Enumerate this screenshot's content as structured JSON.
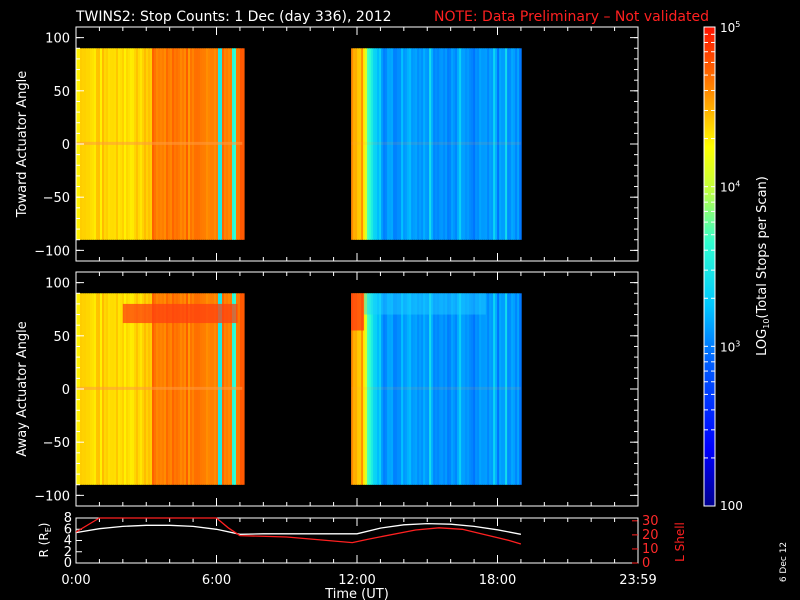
{
  "header": {
    "title": "TWINS2: Stop Counts:  1 Dec (day 336), 2012",
    "note": "NOTE: Data Preliminary – Not validated"
  },
  "footer": {
    "date_stamp": "6 Dec 12"
  },
  "colors": {
    "background": "#000000",
    "axes": "#ffffff",
    "note": "#ff2020",
    "r_line": "#ffffff",
    "lshell_line": "#ff2020"
  },
  "chart_data": [
    {
      "type": "heatmap",
      "ylabel": "Toward Actuator Angle",
      "x_unit": "hours UT",
      "xlim": [
        0,
        24
      ],
      "ylim": [
        -110,
        110
      ],
      "yticks": [
        "100",
        "50",
        "0",
        "−50",
        "−100"
      ],
      "y_extent": [
        -90,
        90
      ],
      "colorscale": "log",
      "data_segments": [
        {
          "start": 0.0,
          "end": 7.1,
          "level": "high (~10^4.6 stops/scan)"
        },
        {
          "start": 11.75,
          "end": 19.0,
          "level": "low (~10^3 stops/scan), falling from ~10^4.5 at start"
        }
      ],
      "features": [
        "slightly elevated band near 0 deg in the 0-7 h segment"
      ]
    },
    {
      "type": "heatmap",
      "ylabel": "Away Actuator Angle",
      "x_unit": "hours UT",
      "xlim": [
        0,
        24
      ],
      "ylim": [
        -110,
        110
      ],
      "yticks": [
        "100",
        "50",
        "0",
        "−50",
        "−100"
      ],
      "y_extent": [
        -90,
        90
      ],
      "colorscale": "log",
      "data_segments": [
        {
          "start": 0.0,
          "end": 7.1,
          "level": "high (~10^4.6 stops/scan), red band near 70 deg"
        },
        {
          "start": 11.75,
          "end": 19.0,
          "level": "low (~10^3 stops/scan), elevated near 70-90 deg"
        }
      ]
    },
    {
      "type": "line",
      "xlabel": "Time (UT)",
      "x_ticks": [
        "0:00",
        "6:00",
        "12:00",
        "18:00",
        "23:59"
      ],
      "x_tick_hours": [
        0,
        6,
        12,
        18,
        24
      ],
      "xlim": [
        0,
        24
      ],
      "ylabel_left": "R (R",
      "ylabel_left_sub": "E",
      "ylabel_right": "L Shell",
      "yticks_left": [
        "8",
        "6",
        "4",
        "2",
        "0"
      ],
      "yticks_right": [
        "30",
        "20",
        "10",
        "0"
      ],
      "ylim_left": [
        0,
        8
      ],
      "ylim_right": [
        0,
        32
      ],
      "series": [
        {
          "name": "R",
          "axis": "left",
          "x": [
            0,
            1,
            2,
            3,
            4,
            5,
            6,
            7,
            8,
            9,
            10,
            11,
            12,
            13,
            14,
            15,
            16,
            17,
            18,
            19
          ],
          "y": [
            5.4,
            6.1,
            6.5,
            6.7,
            6.7,
            6.5,
            6.0,
            5.1,
            5.2,
            5.2,
            5.2,
            5.2,
            5.2,
            6.2,
            6.8,
            7.0,
            6.9,
            6.5,
            5.9,
            5.1
          ]
        },
        {
          "name": "L Shell",
          "axis": "right",
          "x": [
            0,
            0.5,
            1.0,
            6.0,
            6.5,
            7.0,
            9,
            11.8,
            12.5,
            14.5,
            15.5,
            16.5,
            17.5,
            18.5,
            19.0
          ],
          "y": [
            22,
            27,
            32,
            32,
            25,
            19.5,
            18.5,
            14.5,
            17.0,
            23.5,
            25.0,
            24.0,
            20.0,
            16.0,
            13.5
          ]
        }
      ]
    },
    {
      "type": "colorbar",
      "label": "LOG",
      "label_sub": "10",
      "label_rest": "(Total Stops per Scan)",
      "scale": "log",
      "range": [
        100,
        100000
      ],
      "ticks": [
        {
          "label": "10",
          "exp": "5",
          "value": 100000
        },
        {
          "label": "10",
          "exp": "4",
          "value": 10000
        },
        {
          "label": "10",
          "exp": "3",
          "value": 1000
        },
        {
          "label": "100",
          "exp": "",
          "value": 100
        }
      ]
    }
  ]
}
